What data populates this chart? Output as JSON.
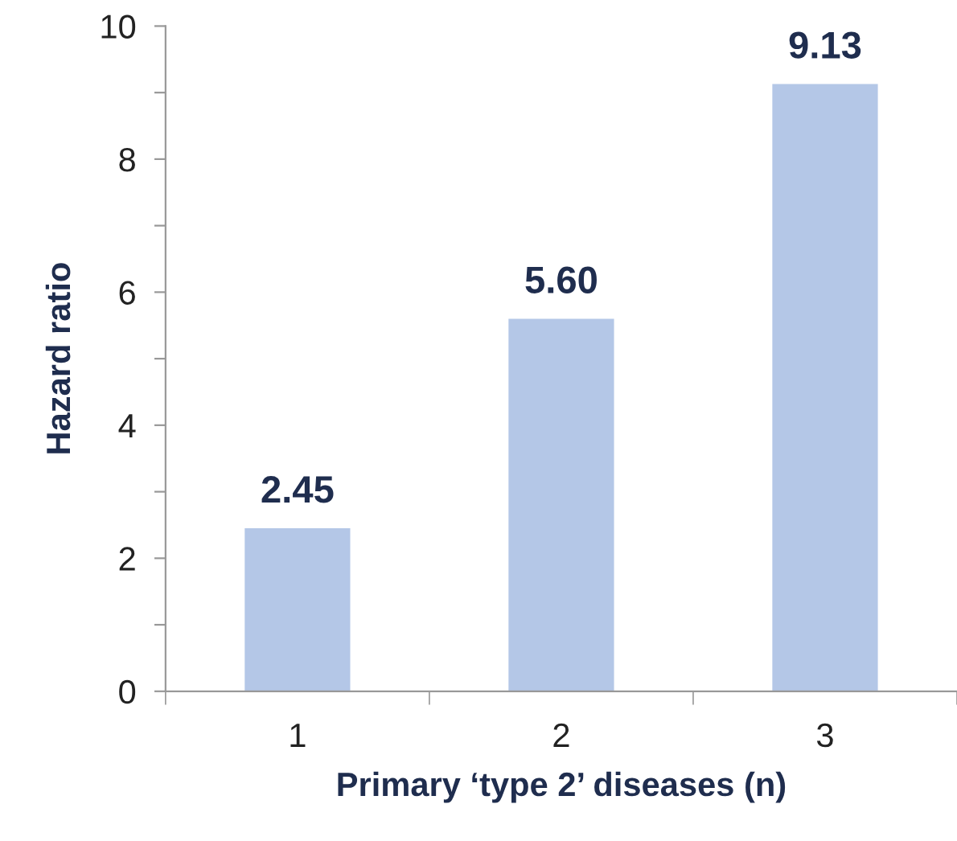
{
  "chart_data": {
    "type": "bar",
    "xlabel": "Primary ‘type 2’ diseases (n)",
    "ylabel": "Hazard ratio",
    "categories": [
      "1",
      "2",
      "3"
    ],
    "values": [
      2.45,
      5.6,
      9.13
    ],
    "color": "#b4c7e7",
    "value_labels": [
      "2.45",
      "5.60",
      "9.13"
    ],
    "ylim": [
      0,
      10
    ],
    "yticks": [
      0,
      {
        "value": 1,
        "label": null
      },
      2,
      {
        "value": 3,
        "label": null
      },
      4,
      {
        "value": 5,
        "label": null
      },
      6,
      {
        "value": 7,
        "label": null
      },
      8,
      {
        "value": 9,
        "label": null
      },
      10
    ],
    "grid": false,
    "legend": false
  }
}
